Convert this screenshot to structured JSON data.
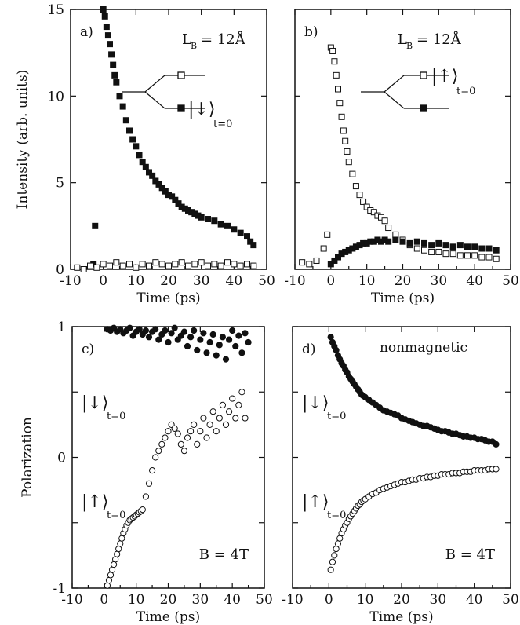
{
  "colors": {
    "ink": "#111111",
    "paper": "#ffffff"
  },
  "chart_data": [
    {
      "id": "a",
      "type": "scatter",
      "panel_label": "a)",
      "annotation_L": "L",
      "annotation_sub": "B",
      "annotation_val": "= 12Å",
      "state_label_sym": "|↓⟩",
      "state_label_sub": "t=0",
      "state_label_on": "filled",
      "ylabel": "Intensity (arb. units)",
      "xlabel": "Time (ps)",
      "xlim": [
        -10,
        50
      ],
      "ylim": [
        0,
        15
      ],
      "xticks": [
        -10,
        0,
        10,
        20,
        30,
        40,
        50
      ],
      "xtick_labels": [
        "-10",
        "0",
        "10",
        "20",
        "30",
        "40",
        "50"
      ],
      "yticks": [
        0,
        5,
        10,
        15
      ],
      "ytick_labels": [
        "0",
        "5",
        "10",
        "15"
      ],
      "marker": "square",
      "series": [
        {
          "style": "filled",
          "x": [
            -3,
            -2.5,
            0,
            0.5,
            1,
            1.5,
            2,
            2.5,
            3,
            3.5,
            4,
            5,
            6,
            7,
            8,
            9,
            10,
            11,
            12,
            13,
            14,
            15,
            16,
            17,
            18,
            19,
            20,
            21,
            22,
            23,
            24,
            25,
            26,
            27,
            28,
            29,
            30,
            32,
            34,
            36,
            38,
            40,
            42,
            44,
            45,
            46
          ],
          "y": [
            0.3,
            2.5,
            15,
            14.6,
            14,
            13.5,
            13,
            12.4,
            11.8,
            11.2,
            10.8,
            10,
            9.4,
            8.6,
            8,
            7.5,
            7.1,
            6.6,
            6.2,
            5.9,
            5.6,
            5.4,
            5.1,
            4.9,
            4.7,
            4.5,
            4.3,
            4.2,
            4.0,
            3.8,
            3.6,
            3.5,
            3.4,
            3.3,
            3.2,
            3.1,
            3.0,
            2.9,
            2.8,
            2.6,
            2.5,
            2.3,
            2.1,
            1.9,
            1.6,
            1.4
          ]
        },
        {
          "style": "open",
          "x": [
            -8,
            -6,
            -4,
            -2,
            0,
            2,
            4,
            6,
            8,
            10,
            12,
            14,
            16,
            18,
            20,
            22,
            24,
            26,
            28,
            30,
            32,
            34,
            36,
            38,
            40,
            42,
            44,
            46
          ],
          "y": [
            0.1,
            0.0,
            0.2,
            0.1,
            0.3,
            0.2,
            0.4,
            0.2,
            0.3,
            0.1,
            0.3,
            0.2,
            0.4,
            0.3,
            0.2,
            0.3,
            0.4,
            0.2,
            0.3,
            0.4,
            0.2,
            0.3,
            0.2,
            0.4,
            0.3,
            0.2,
            0.3,
            0.2
          ]
        }
      ]
    },
    {
      "id": "b",
      "type": "scatter",
      "panel_label": "b)",
      "annotation_L": "L",
      "annotation_sub": "B",
      "annotation_val": "= 12Å",
      "state_label_sym": "|↑⟩",
      "state_label_sub": "t=0",
      "state_label_on": "open",
      "xlabel": "Time (ps)",
      "xlim": [
        -10,
        50
      ],
      "ylim": [
        0,
        15
      ],
      "xticks": [
        -10,
        0,
        10,
        20,
        30,
        40,
        50
      ],
      "xtick_labels": [
        "-10",
        "0",
        "10",
        "20",
        "30",
        "40",
        "50"
      ],
      "yticks": [
        0,
        5,
        10,
        15
      ],
      "marker": "square",
      "series": [
        {
          "style": "open",
          "x": [
            -8,
            -6,
            -4,
            -2,
            -1,
            0,
            0.5,
            1,
            1.5,
            2,
            2.5,
            3,
            3.5,
            4,
            4.5,
            5,
            6,
            7,
            8,
            9,
            10,
            11,
            12,
            13,
            14,
            15,
            16,
            18,
            20,
            22,
            24,
            26,
            28,
            30,
            32,
            34,
            36,
            38,
            40,
            42,
            44,
            46
          ],
          "y": [
            0.4,
            0.3,
            0.5,
            1.2,
            2.0,
            12.8,
            12.6,
            12.0,
            11.2,
            10.4,
            9.6,
            8.8,
            8.0,
            7.4,
            6.8,
            6.2,
            5.5,
            4.8,
            4.3,
            3.9,
            3.6,
            3.4,
            3.3,
            3.1,
            3.0,
            2.8,
            2.4,
            2.0,
            1.7,
            1.4,
            1.2,
            1.1,
            1.0,
            1.0,
            0.9,
            0.9,
            0.8,
            0.8,
            0.8,
            0.7,
            0.7,
            0.6
          ]
        },
        {
          "style": "filled",
          "x": [
            0,
            1,
            2,
            3,
            4,
            5,
            6,
            7,
            8,
            9,
            10,
            11,
            12,
            13,
            14,
            15,
            16,
            18,
            20,
            22,
            24,
            26,
            28,
            30,
            32,
            34,
            36,
            38,
            40,
            42,
            44,
            46
          ],
          "y": [
            0.3,
            0.5,
            0.7,
            0.9,
            1.0,
            1.1,
            1.2,
            1.3,
            1.4,
            1.5,
            1.5,
            1.6,
            1.6,
            1.7,
            1.6,
            1.7,
            1.6,
            1.7,
            1.6,
            1.5,
            1.6,
            1.5,
            1.4,
            1.5,
            1.4,
            1.3,
            1.4,
            1.3,
            1.3,
            1.2,
            1.2,
            1.1
          ]
        }
      ]
    },
    {
      "id": "c",
      "type": "scatter",
      "panel_label": "c)",
      "annotation_text": "B = 4T",
      "state_down_sym": "|↓⟩",
      "state_up_sym": "|↑⟩",
      "state_sub": "t=0",
      "ylabel": "Polarization",
      "xlabel": "Time (ps)",
      "xlim": [
        -10,
        50
      ],
      "ylim": [
        -1,
        1
      ],
      "xticks": [
        -10,
        0,
        10,
        20,
        30,
        40,
        50
      ],
      "xtick_labels": [
        "-10",
        "0",
        "10",
        "20",
        "30",
        "40",
        "50"
      ],
      "yticks": [
        -1,
        -0.5,
        0,
        0.5,
        1
      ],
      "ytick_labels": [
        "-1",
        "",
        "0",
        "",
        "1"
      ],
      "marker": "circle",
      "series": [
        {
          "style": "filled",
          "x": [
            1,
            2,
            3,
            4,
            5,
            6,
            7,
            8,
            9,
            10,
            11,
            12,
            13,
            14,
            15,
            16,
            17,
            18,
            19,
            20,
            21,
            22,
            23,
            24,
            25,
            26,
            27,
            28,
            29,
            30,
            31,
            32,
            33,
            34,
            35,
            36,
            37,
            38,
            39,
            40,
            41,
            42,
            43,
            44,
            45
          ],
          "y": [
            0.98,
            0.97,
            0.99,
            0.96,
            0.98,
            0.95,
            0.97,
            0.99,
            0.93,
            0.96,
            0.98,
            0.94,
            0.97,
            0.92,
            0.96,
            0.98,
            0.9,
            0.94,
            0.97,
            0.88,
            0.95,
            0.99,
            0.9,
            0.93,
            0.96,
            0.85,
            0.92,
            0.97,
            0.82,
            0.9,
            0.95,
            0.8,
            0.88,
            0.94,
            0.78,
            0.86,
            0.92,
            0.75,
            0.9,
            0.97,
            0.85,
            0.93,
            0.8,
            0.95,
            0.88
          ]
        },
        {
          "style": "open",
          "x": [
            1,
            1.5,
            2,
            2.5,
            3,
            3.5,
            4,
            4.5,
            5,
            5.5,
            6,
            6.5,
            7,
            7.5,
            8,
            8.5,
            9,
            9.5,
            10,
            10.5,
            11,
            11.5,
            12,
            13,
            14,
            15,
            16,
            17,
            18,
            19,
            20,
            21,
            22,
            23,
            24,
            25,
            26,
            27,
            28,
            29,
            30,
            31,
            32,
            33,
            34,
            35,
            36,
            37,
            38,
            39,
            40,
            41,
            42,
            43,
            44
          ],
          "y": [
            -0.98,
            -0.94,
            -0.9,
            -0.86,
            -0.82,
            -0.78,
            -0.74,
            -0.7,
            -0.66,
            -0.62,
            -0.58,
            -0.55,
            -0.52,
            -0.5,
            -0.48,
            -0.47,
            -0.46,
            -0.45,
            -0.44,
            -0.43,
            -0.42,
            -0.41,
            -0.4,
            -0.3,
            -0.2,
            -0.1,
            0.0,
            0.05,
            0.1,
            0.15,
            0.2,
            0.25,
            0.22,
            0.18,
            0.1,
            0.05,
            0.15,
            0.2,
            0.25,
            0.1,
            0.2,
            0.3,
            0.15,
            0.25,
            0.35,
            0.2,
            0.3,
            0.4,
            0.25,
            0.35,
            0.45,
            0.3,
            0.4,
            0.5,
            0.3
          ]
        }
      ]
    },
    {
      "id": "d",
      "type": "scatter",
      "panel_label": "d)",
      "title_text": "nonmagnetic",
      "annotation_text": "B = 4T",
      "state_down_sym": "|↓⟩",
      "state_up_sym": "|↑⟩",
      "state_sub": "t=0",
      "xlabel": "Time (ps)",
      "xlim": [
        -10,
        50
      ],
      "ylim": [
        -1,
        1
      ],
      "xticks": [
        -10,
        0,
        10,
        20,
        30,
        40,
        50
      ],
      "xtick_labels": [
        "-10",
        "0",
        "10",
        "20",
        "30",
        "40",
        "50"
      ],
      "yticks": [
        -1,
        -0.5,
        0,
        0.5,
        1
      ],
      "marker": "circle",
      "series": [
        {
          "style": "filled",
          "x": [
            0.5,
            1,
            1.5,
            2,
            2.5,
            3,
            3.5,
            4,
            4.5,
            5,
            5.5,
            6,
            6.5,
            7,
            7.5,
            8,
            8.5,
            9,
            9.5,
            10,
            11,
            12,
            13,
            14,
            15,
            16,
            17,
            18,
            19,
            20,
            21,
            22,
            23,
            24,
            25,
            26,
            27,
            28,
            29,
            30,
            31,
            32,
            33,
            34,
            35,
            36,
            37,
            38,
            39,
            40,
            41,
            42,
            43,
            44,
            45,
            46
          ],
          "y": [
            0.92,
            0.88,
            0.85,
            0.82,
            0.78,
            0.75,
            0.72,
            0.7,
            0.67,
            0.65,
            0.62,
            0.6,
            0.58,
            0.56,
            0.54,
            0.52,
            0.5,
            0.48,
            0.47,
            0.46,
            0.44,
            0.42,
            0.4,
            0.38,
            0.36,
            0.35,
            0.34,
            0.33,
            0.32,
            0.3,
            0.29,
            0.28,
            0.27,
            0.26,
            0.25,
            0.24,
            0.24,
            0.23,
            0.22,
            0.21,
            0.2,
            0.2,
            0.19,
            0.18,
            0.18,
            0.17,
            0.16,
            0.16,
            0.15,
            0.15,
            0.14,
            0.14,
            0.13,
            0.12,
            0.12,
            0.1
          ]
        },
        {
          "style": "open",
          "x": [
            0.5,
            1,
            1.5,
            2,
            2.5,
            3,
            3.5,
            4,
            4.5,
            5,
            5.5,
            6,
            6.5,
            7,
            7.5,
            8,
            8.5,
            9,
            9.5,
            10,
            11,
            12,
            13,
            14,
            15,
            16,
            17,
            18,
            19,
            20,
            21,
            22,
            23,
            24,
            25,
            26,
            27,
            28,
            29,
            30,
            31,
            32,
            33,
            34,
            35,
            36,
            37,
            38,
            39,
            40,
            41,
            42,
            43,
            44,
            45,
            46
          ],
          "y": [
            -0.86,
            -0.8,
            -0.75,
            -0.7,
            -0.66,
            -0.62,
            -0.58,
            -0.55,
            -0.52,
            -0.5,
            -0.47,
            -0.45,
            -0.43,
            -0.41,
            -0.39,
            -0.37,
            -0.36,
            -0.34,
            -0.33,
            -0.32,
            -0.3,
            -0.28,
            -0.27,
            -0.25,
            -0.24,
            -0.23,
            -0.22,
            -0.21,
            -0.2,
            -0.19,
            -0.19,
            -0.18,
            -0.17,
            -0.17,
            -0.16,
            -0.16,
            -0.15,
            -0.15,
            -0.14,
            -0.14,
            -0.13,
            -0.13,
            -0.13,
            -0.12,
            -0.12,
            -0.12,
            -0.11,
            -0.11,
            -0.11,
            -0.1,
            -0.1,
            -0.1,
            -0.1,
            -0.09,
            -0.09,
            -0.09
          ]
        }
      ]
    }
  ]
}
